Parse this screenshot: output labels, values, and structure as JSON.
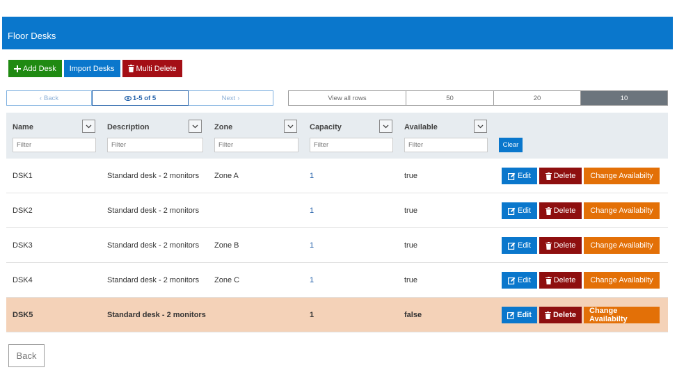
{
  "header": {
    "title": "Floor Desks"
  },
  "toolbar": {
    "add_label": "Add Desk",
    "import_label": "Import Desks",
    "multi_delete_label": "Multi Delete"
  },
  "pager": {
    "back_label": "Back",
    "info_label": "1-5 of 5",
    "next_label": "Next"
  },
  "rows_per_page": {
    "options": [
      "View all rows",
      "50",
      "20",
      "10"
    ],
    "selected": "10"
  },
  "columns": [
    {
      "label": "Name",
      "placeholder": "Filter"
    },
    {
      "label": "Description",
      "placeholder": "Filter"
    },
    {
      "label": "Zone",
      "placeholder": "Filter"
    },
    {
      "label": "Capacity",
      "placeholder": "Filter"
    },
    {
      "label": "Available",
      "placeholder": "Filter"
    }
  ],
  "clear_label": "Clear",
  "actions": {
    "edit_label": "Edit",
    "delete_label": "Delete",
    "change_label": "Change Availabilty"
  },
  "desks": [
    {
      "name": "DSK1",
      "description": "Standard desk - 2 monitors",
      "zone": "Zone A",
      "capacity": "1",
      "available": "true"
    },
    {
      "name": "DSK2",
      "description": "Standard desk - 2 monitors",
      "zone": "",
      "capacity": "1",
      "available": "true"
    },
    {
      "name": "DSK3",
      "description": "Standard desk - 2 monitors",
      "zone": "Zone B",
      "capacity": "1",
      "available": "true"
    },
    {
      "name": "DSK4",
      "description": "Standard desk - 2 monitors",
      "zone": "Zone C",
      "capacity": "1",
      "available": "true"
    },
    {
      "name": "DSK5",
      "description": "Standard desk - 2 monitors",
      "zone": "",
      "capacity": "1",
      "available": "false"
    }
  ],
  "back_label": "Back",
  "colors": {
    "header": "#0a77cc",
    "add": "#1f8a12",
    "delete": "#a40f16",
    "change": "#e37007",
    "highlight_row": "#f4d2b8"
  }
}
